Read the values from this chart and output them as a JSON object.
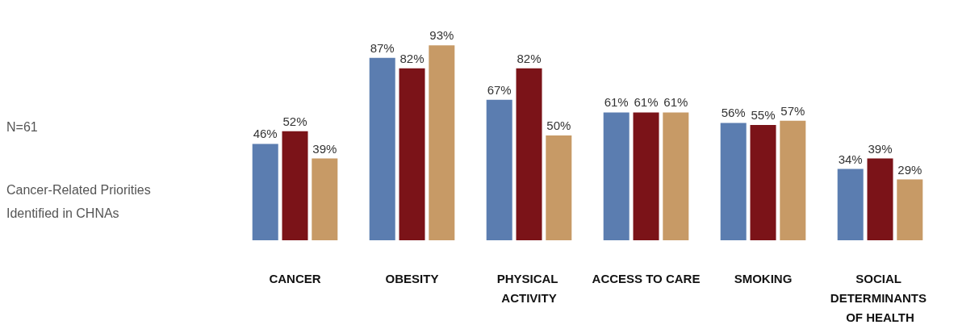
{
  "chart_data": {
    "type": "bar",
    "categories": [
      "CANCER",
      "OBESITY",
      "PHYSICAL ACTIVITY",
      "ACCESS TO CARE",
      "SMOKING",
      "SOCIAL DETERMINANTS OF HEALTH"
    ],
    "series": [
      {
        "color": "#5b7db0",
        "values": [
          46,
          87,
          67,
          61,
          56,
          34
        ],
        "value_labels": [
          "46%",
          "87%",
          "67%",
          "61%",
          "56%",
          "34%"
        ]
      },
      {
        "color": "#7b1318",
        "values": [
          52,
          82,
          82,
          61,
          55,
          39
        ],
        "value_labels": [
          "52%",
          "82%",
          "82%",
          "61%",
          "55%",
          "39%"
        ]
      },
      {
        "color": "#c79a66",
        "values": [
          39,
          93,
          50,
          61,
          57,
          29
        ],
        "value_labels": [
          "39%",
          "93%",
          "50%",
          "61%",
          "57%",
          "29%"
        ]
      }
    ],
    "annotations": [
      "N=61",
      "Cancer-Related Priorities Identified in CHNAs"
    ],
    "grid": false
  }
}
